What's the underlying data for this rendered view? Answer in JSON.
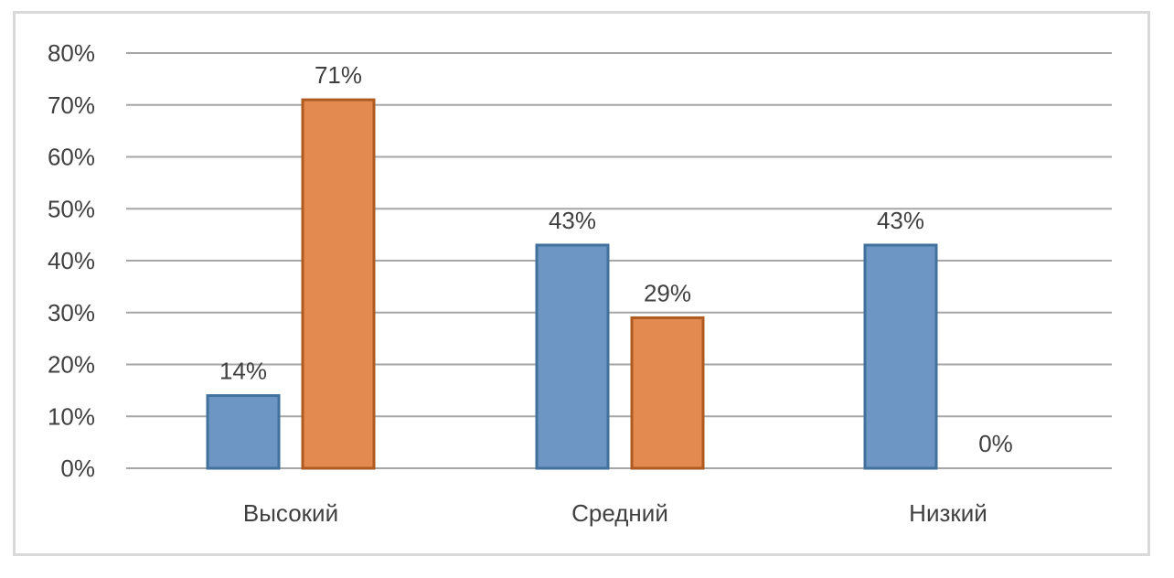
{
  "chart_data": {
    "type": "bar",
    "categories": [
      "Высокий",
      "Средний",
      "Низкий"
    ],
    "series": [
      {
        "values": [
          14,
          43,
          43
        ],
        "labels": [
          "14%",
          "43%",
          "43%"
        ],
        "color": "#6e96c5"
      },
      {
        "values": [
          71,
          29,
          0
        ],
        "labels": [
          "71%",
          "29%",
          "0%"
        ],
        "color": "#e28a50"
      }
    ],
    "ylim": [
      0,
      80
    ],
    "yticks": [
      "0%",
      "10%",
      "20%",
      "30%",
      "40%",
      "50%",
      "60%",
      "70%",
      "80%"
    ],
    "ytick_values": [
      0,
      10,
      20,
      30,
      40,
      50,
      60,
      70,
      80
    ],
    "grid": true,
    "legend": "none",
    "title": "",
    "xlabel": "",
    "ylabel": ""
  },
  "colors": {
    "gridline": "#a6a6a6",
    "series_1_border": "#41719c",
    "series_2_border": "#ae5a21"
  }
}
